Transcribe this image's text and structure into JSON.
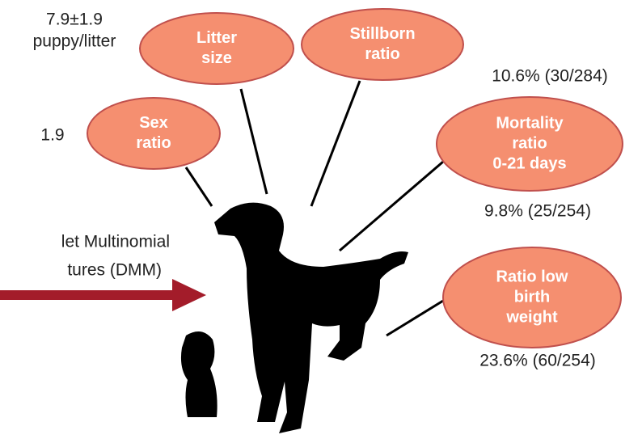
{
  "nodes": [
    {
      "label": [
        "Litter",
        "size"
      ],
      "value": [
        "7.9±1.9",
        "puppy/litter"
      ]
    },
    {
      "label": [
        "Stillborn",
        "ratio"
      ],
      "value": [
        "10.6% (30/284)"
      ]
    },
    {
      "label": [
        "Sex",
        "ratio"
      ],
      "value": [
        "1.9"
      ]
    },
    {
      "label": [
        "Mortality",
        "ratio",
        "0-21  days"
      ],
      "value": [
        "9.8% (25/254)"
      ]
    },
    {
      "label": [
        "Ratio low",
        "birth",
        "weight"
      ],
      "value": [
        "23.6% (60/254)"
      ]
    }
  ],
  "method": [
    "let Multinomial",
    "tures (DMM)"
  ]
}
